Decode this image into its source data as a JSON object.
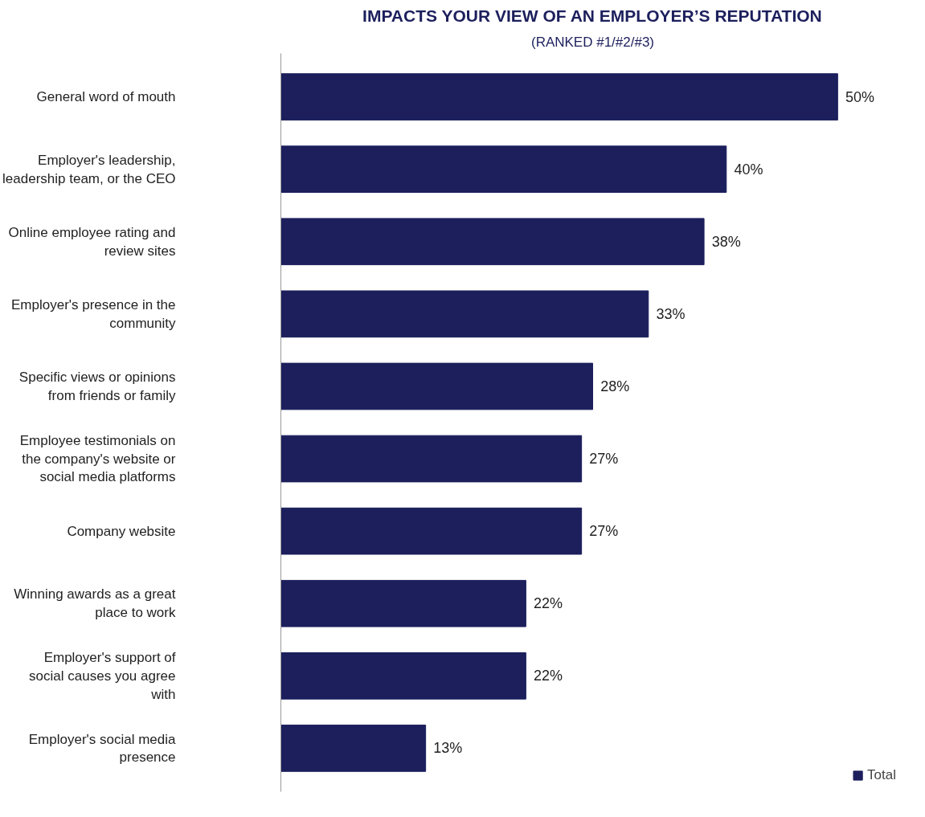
{
  "chart_data": {
    "type": "bar",
    "orientation": "horizontal",
    "title": "IMPACTS YOUR VIEW OF AN EMPLOYER’S REPUTATION",
    "subtitle": "(RANKED #1/#2/#3)",
    "categories": [
      "General word of mouth",
      "Employer's leadership, leadership team, or the CEO",
      "Online employee rating and review sites",
      "Employer's presence in the community",
      "Specific views or opinions from friends or family",
      "Employee testimonials on the company's website or social media platforms",
      "Company website",
      "Winning awards as a great place to work",
      "Employer's support of social causes you agree with",
      "Employer's social media presence"
    ],
    "series": [
      {
        "name": "Total",
        "color": "#1c1f5c",
        "values": [
          50,
          40,
          38,
          33,
          28,
          27,
          27,
          22,
          22,
          13
        ],
        "value_labels": [
          "50%",
          "40%",
          "38%",
          "33%",
          "28%",
          "27%",
          "27%",
          "22%",
          "22%",
          "13%"
        ]
      }
    ],
    "legend": "bottom right",
    "grid": false,
    "tick_labels": "y"
  }
}
